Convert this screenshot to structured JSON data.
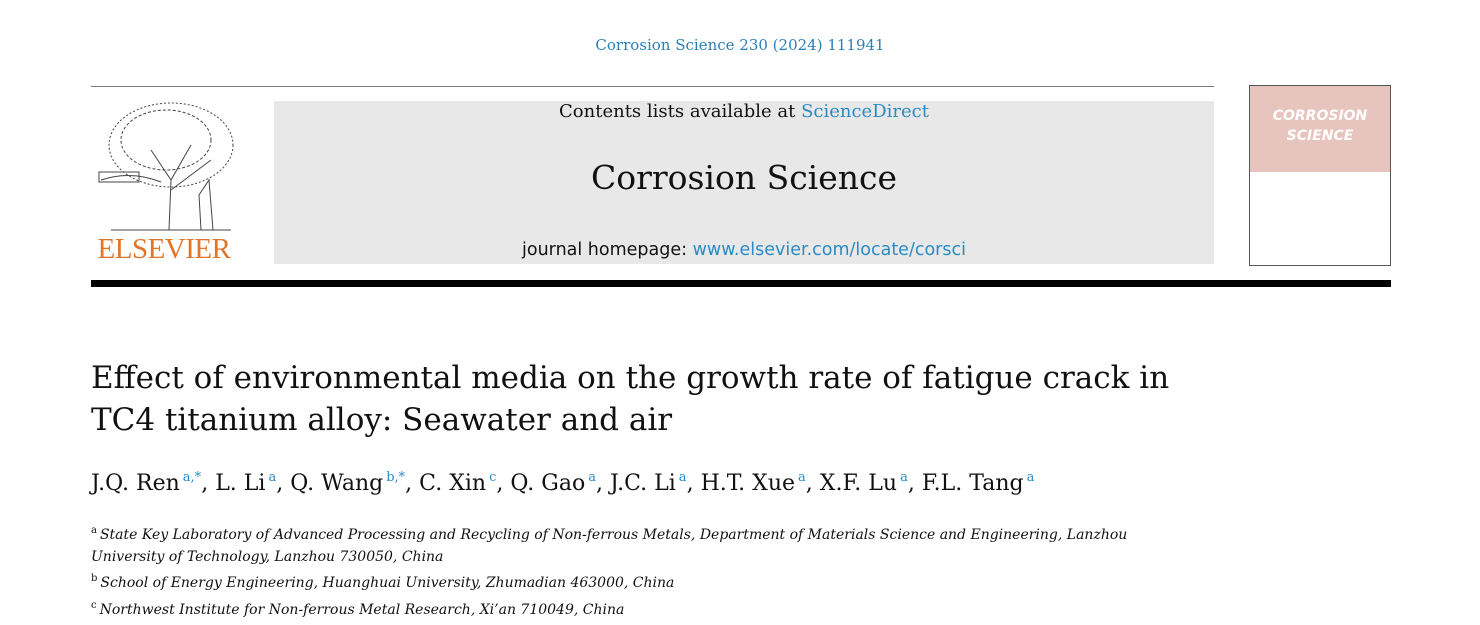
{
  "citation": "Corrosion Science 230 (2024) 111941",
  "publisher": {
    "logo_text": "ELSEVIER"
  },
  "banner": {
    "contents_prefix": "Contents lists available at ",
    "contents_link": "ScienceDirect",
    "journal": "Corrosion Science",
    "homepage_prefix": "journal homepage: ",
    "homepage_link": "www.elsevier.com/locate/corsci"
  },
  "cover": {
    "line1": "CORROSION",
    "line2": "SCIENCE"
  },
  "article": {
    "title": "Effect of environmental media on the growth rate of fatigue crack in TC4 titanium alloy: Seawater and air",
    "authors": [
      {
        "name": "J.Q. Ren",
        "sup": "a,*"
      },
      {
        "name": "L. Li",
        "sup": "a"
      },
      {
        "name": "Q. Wang",
        "sup": "b,*"
      },
      {
        "name": "C. Xin",
        "sup": "c"
      },
      {
        "name": "Q. Gao",
        "sup": "a"
      },
      {
        "name": "J.C. Li",
        "sup": "a"
      },
      {
        "name": "H.T. Xue",
        "sup": "a"
      },
      {
        "name": "X.F. Lu",
        "sup": "a"
      },
      {
        "name": "F.L. Tang",
        "sup": "a"
      }
    ],
    "affiliations": [
      {
        "key": "a",
        "text": "State Key Laboratory of Advanced Processing and Recycling of Non-ferrous Metals, Department of Materials Science and Engineering, Lanzhou University of Technology, Lanzhou 730050, China"
      },
      {
        "key": "b",
        "text": "School of Energy Engineering, Huanghuai University, Zhumadian 463000, China"
      },
      {
        "key": "c",
        "text": "Northwest Institute for Non-ferrous Metal Research, Xi’an 710049, China"
      }
    ]
  },
  "colors": {
    "link": "#2a8bc4",
    "elsevier_orange": "#e0762a",
    "cover_pink": "#e8c4be",
    "banner_gray": "#e8e8e8"
  }
}
